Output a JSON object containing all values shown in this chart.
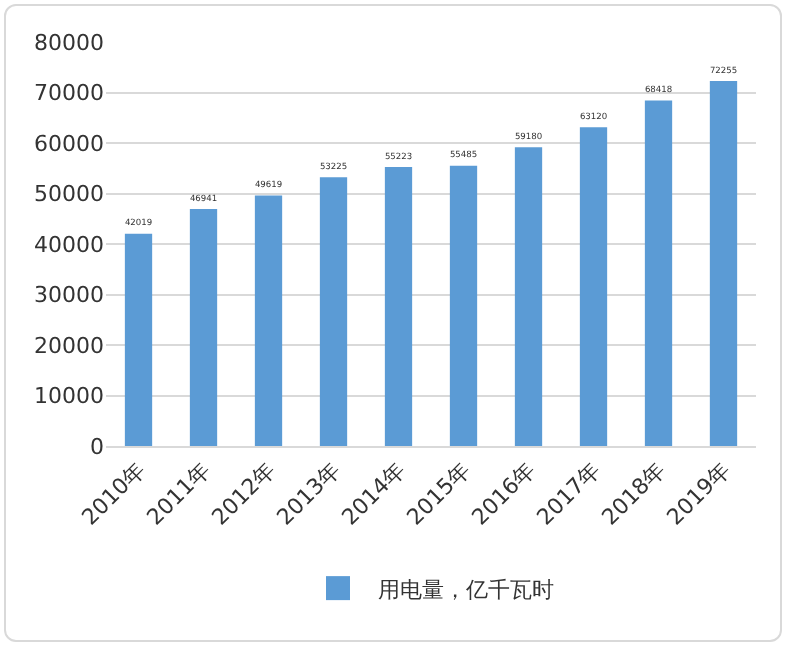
{
  "chart_data": {
    "type": "bar",
    "categories": [
      "2010年",
      "2011年",
      "2012年",
      "2013年",
      "2014年",
      "2015年",
      "2016年",
      "2017年",
      "2018年",
      "2019年"
    ],
    "series": [
      {
        "name": "用电量，亿千瓦时",
        "color": "#5b9bd5",
        "values": [
          42019,
          46941,
          49619,
          53225,
          55223,
          55485,
          59180,
          63120,
          68418,
          72255
        ]
      }
    ],
    "ylim": [
      0,
      80000
    ],
    "yticks": [
      0,
      10000,
      20000,
      30000,
      40000,
      50000,
      60000,
      70000,
      80000
    ],
    "grid": "y",
    "legend": "bottom",
    "data_labels": true
  }
}
